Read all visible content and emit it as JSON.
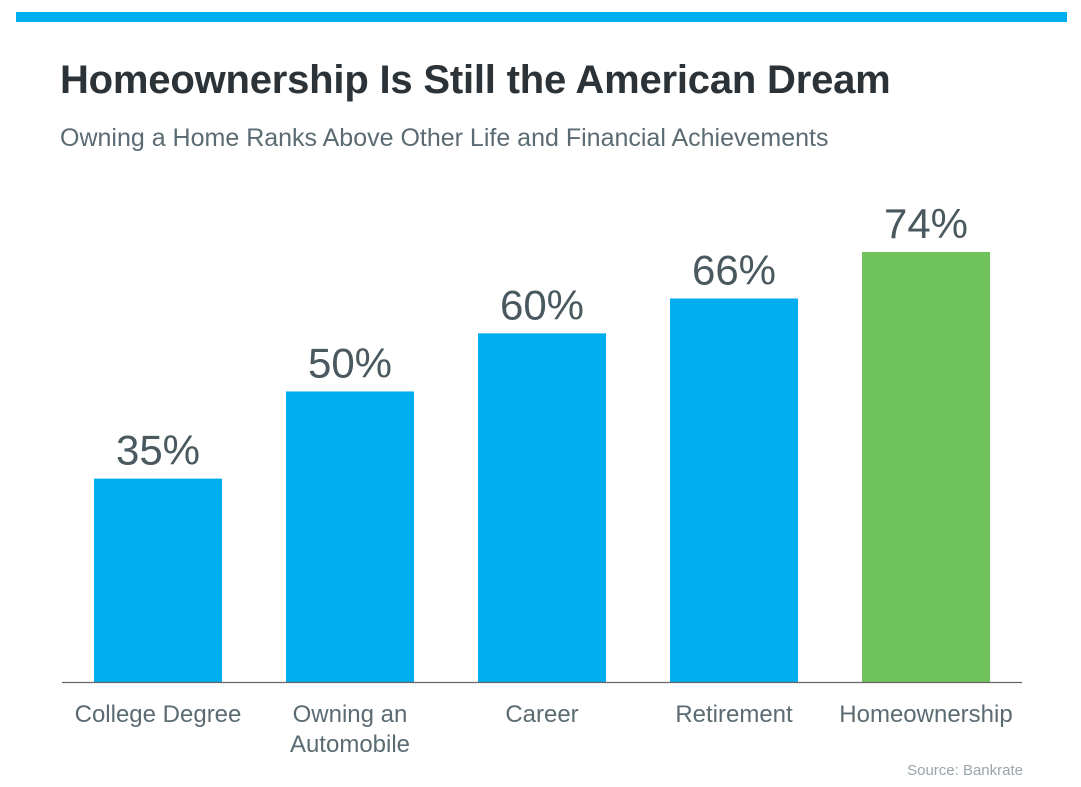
{
  "header": {
    "title": "Homeownership Is Still the American Dream",
    "subtitle": "Owning a Home Ranks Above Other Life and Financial Achievements"
  },
  "source": "Source: Bankrate",
  "colors": {
    "accent_rule": "#00aeef",
    "bar_default": "#00aeef",
    "bar_highlight": "#6fc35a",
    "baseline": "#666666"
  },
  "chart_data": {
    "type": "bar",
    "categories": [
      [
        "College Degree"
      ],
      [
        "Owning an",
        "Automobile"
      ],
      [
        "Career"
      ],
      [
        "Retirement"
      ],
      [
        "Homeownership"
      ]
    ],
    "values": [
      35,
      50,
      60,
      66,
      74
    ],
    "value_labels": [
      "35%",
      "50%",
      "60%",
      "66%",
      "74%"
    ],
    "highlight_index": 4,
    "ylim": [
      0,
      100
    ],
    "grid": false,
    "legend": "none"
  }
}
